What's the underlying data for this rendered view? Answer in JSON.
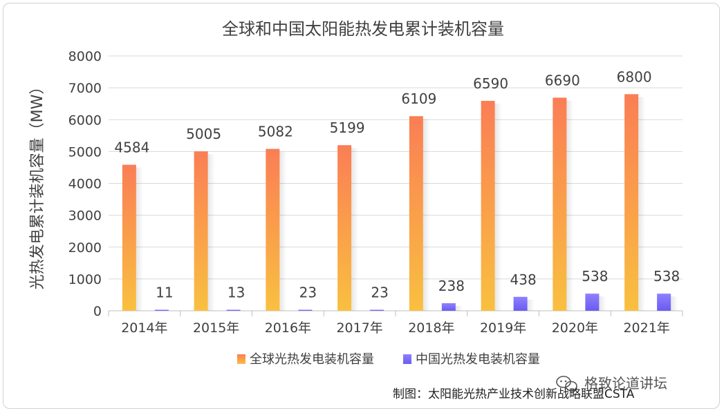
{
  "chart_data": {
    "type": "bar",
    "title": "全球和中国太阳能热发电累计装机容量",
    "ylabel": "光热发电累计装机容量（MW）",
    "xlabel": "",
    "categories": [
      "2014年",
      "2015年",
      "2016年",
      "2017年",
      "2018年",
      "2019年",
      "2020年",
      "2021年"
    ],
    "series": [
      {
        "name": "全球光热发电装机容量",
        "values": [
          4584,
          5005,
          5082,
          5199,
          6109,
          6590,
          6690,
          6800
        ],
        "color_top": "#fa7e55",
        "color_bottom": "#f9c040"
      },
      {
        "name": "中国光热发电装机容量",
        "values": [
          11,
          13,
          23,
          23,
          238,
          438,
          538,
          538
        ],
        "color_top": "#8e80ff",
        "color_bottom": "#6a5cf0"
      }
    ],
    "ylim": [
      0,
      8000
    ],
    "yticks": [
      0,
      1000,
      2000,
      3000,
      4000,
      5000,
      6000,
      7000,
      8000
    ],
    "grid": true,
    "legend_position": "bottom"
  },
  "source_note": "制图：太阳能光热产业技术创新战略联盟CSTA",
  "watermark": "格致论道讲坛"
}
